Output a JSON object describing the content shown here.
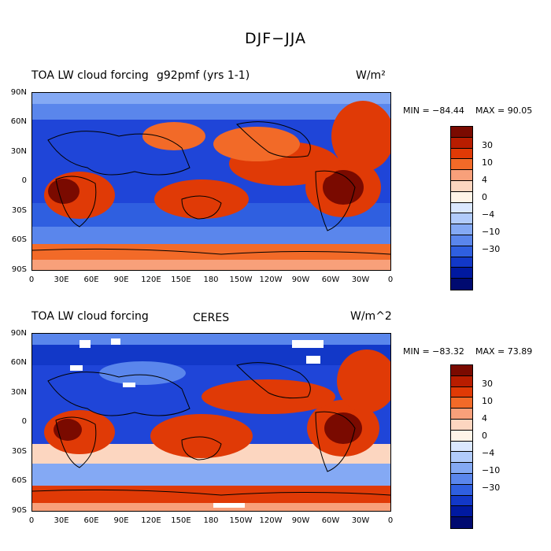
{
  "title": "DJF−JJA",
  "lat_labels": [
    "90N",
    "60N",
    "30N",
    "0",
    "30S",
    "60S",
    "90S"
  ],
  "lon_labels": [
    "0",
    "30E",
    "60E",
    "90E",
    "120E",
    "150E",
    "180",
    "150W",
    "120W",
    "90W",
    "60W",
    "30W",
    "0"
  ],
  "colorbar": {
    "colors": [
      "#7a0a00",
      "#b81d00",
      "#e03a06",
      "#f26a28",
      "#f8a07a",
      "#fcd6c0",
      "#fff4e8",
      "#dbe8ff",
      "#b1cbfb",
      "#84a9f4",
      "#5a86ec",
      "#2f5fe0",
      "#1238c8",
      "#0019a0",
      "#000a70"
    ],
    "labels": [
      "30",
      "10",
      "4",
      "0",
      "−4",
      "−10",
      "−30"
    ]
  },
  "panels": [
    {
      "title_left": "TOA LW cloud forcing",
      "title_center": "g92pmf (yrs 1-1)",
      "units": "W/m²",
      "min": "MIN = −84.44",
      "max": "MAX =  90.05"
    },
    {
      "title_left": "TOA LW cloud forcing",
      "title_center": "CERES",
      "units": "W/m^2",
      "min": "MIN = −83.32",
      "max": "MAX =  73.89"
    }
  ]
}
